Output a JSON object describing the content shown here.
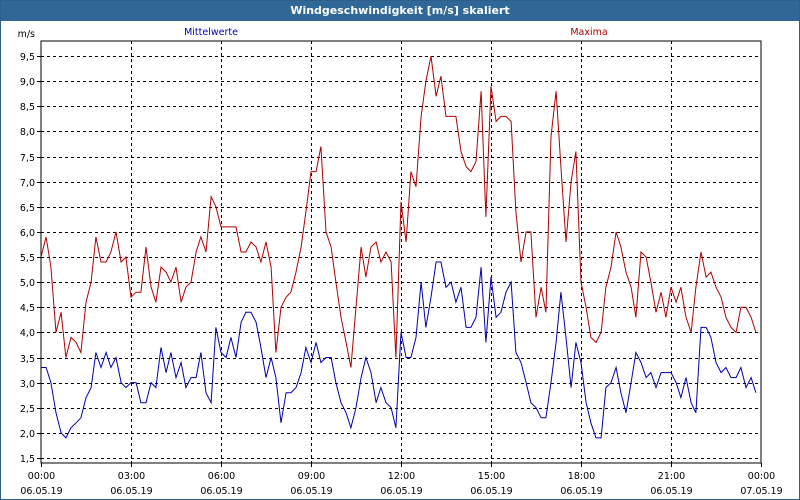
{
  "window": {
    "title": "Windgeschwindigkeit [m/s] skaliert"
  },
  "chart_data": {
    "type": "line",
    "title": "Windgeschwindigkeit [m/s] skaliert",
    "ylabel": "m/s",
    "xlabel": "",
    "ylim": [
      1.4,
      9.8
    ],
    "xlim": [
      0,
      24
    ],
    "grid": true,
    "x_ticks": [
      {
        "x": 0,
        "time": "00:00",
        "date": "06.05.19"
      },
      {
        "x": 3,
        "time": "03:00",
        "date": "06.05.19"
      },
      {
        "x": 6,
        "time": "06:00",
        "date": "06.05.19"
      },
      {
        "x": 9,
        "time": "09:00",
        "date": "06.05.19"
      },
      {
        "x": 12,
        "time": "12:00",
        "date": "06.05.19"
      },
      {
        "x": 15,
        "time": "15:00",
        "date": "06.05.19"
      },
      {
        "x": 18,
        "time": "18:00",
        "date": "06.05.19"
      },
      {
        "x": 21,
        "time": "21:00",
        "date": "06.05.19"
      },
      {
        "x": 24,
        "time": "00:00",
        "date": "07.05.19"
      }
    ],
    "y_ticks": [
      "1,5",
      "2,0",
      "2,5",
      "3,0",
      "3,5",
      "4,0",
      "4,5",
      "5,0",
      "5,5",
      "6,0",
      "6,5",
      "7,0",
      "7,5",
      "8,0",
      "8,5",
      "9,0",
      "9,5"
    ],
    "series": [
      {
        "name": "Mittelwerte",
        "color": "#0000b0",
        "legend": "top-left",
        "points": [
          [
            0,
            3.3
          ],
          [
            0.17,
            3.3
          ],
          [
            0.33,
            3.0
          ],
          [
            0.5,
            2.4
          ],
          [
            0.67,
            2.0
          ],
          [
            0.83,
            1.9
          ],
          [
            1,
            2.1
          ],
          [
            1.17,
            2.2
          ],
          [
            1.33,
            2.3
          ],
          [
            1.5,
            2.7
          ],
          [
            1.67,
            2.9
          ],
          [
            1.83,
            3.6
          ],
          [
            2,
            3.3
          ],
          [
            2.17,
            3.6
          ],
          [
            2.33,
            3.3
          ],
          [
            2.5,
            3.5
          ],
          [
            2.67,
            3.0
          ],
          [
            2.83,
            2.9
          ],
          [
            3,
            3.0
          ],
          [
            3.17,
            3.0
          ],
          [
            3.33,
            2.6
          ],
          [
            3.5,
            2.6
          ],
          [
            3.67,
            3.0
          ],
          [
            3.83,
            2.9
          ],
          [
            4,
            3.7
          ],
          [
            4.17,
            3.2
          ],
          [
            4.33,
            3.6
          ],
          [
            4.5,
            3.1
          ],
          [
            4.67,
            3.4
          ],
          [
            4.83,
            2.9
          ],
          [
            5,
            3.1
          ],
          [
            5.17,
            3.1
          ],
          [
            5.33,
            3.6
          ],
          [
            5.5,
            2.8
          ],
          [
            5.67,
            2.6
          ],
          [
            5.83,
            4.1
          ],
          [
            6,
            3.6
          ],
          [
            6.17,
            3.5
          ],
          [
            6.33,
            3.9
          ],
          [
            6.5,
            3.5
          ],
          [
            6.67,
            4.2
          ],
          [
            6.83,
            4.4
          ],
          [
            7,
            4.4
          ],
          [
            7.17,
            4.2
          ],
          [
            7.33,
            3.7
          ],
          [
            7.5,
            3.1
          ],
          [
            7.67,
            3.5
          ],
          [
            7.83,
            3.1
          ],
          [
            8,
            2.2
          ],
          [
            8.17,
            2.8
          ],
          [
            8.33,
            2.8
          ],
          [
            8.5,
            2.9
          ],
          [
            8.67,
            3.2
          ],
          [
            8.83,
            3.7
          ],
          [
            9,
            3.4
          ],
          [
            9.17,
            3.8
          ],
          [
            9.33,
            3.4
          ],
          [
            9.5,
            3.5
          ],
          [
            9.67,
            3.5
          ],
          [
            9.83,
            3.0
          ],
          [
            10,
            2.6
          ],
          [
            10.17,
            2.4
          ],
          [
            10.33,
            2.1
          ],
          [
            10.5,
            2.5
          ],
          [
            10.67,
            3.1
          ],
          [
            10.83,
            3.5
          ],
          [
            11,
            3.2
          ],
          [
            11.17,
            2.6
          ],
          [
            11.33,
            2.9
          ],
          [
            11.5,
            2.6
          ],
          [
            11.67,
            2.5
          ],
          [
            11.83,
            2.1
          ],
          [
            12,
            4.0
          ],
          [
            12.17,
            3.5
          ],
          [
            12.33,
            3.5
          ],
          [
            12.5,
            3.9
          ],
          [
            12.67,
            5.0
          ],
          [
            12.83,
            4.1
          ],
          [
            13,
            4.7
          ],
          [
            13.17,
            5.4
          ],
          [
            13.33,
            5.4
          ],
          [
            13.5,
            4.9
          ],
          [
            13.67,
            5.0
          ],
          [
            13.83,
            4.6
          ],
          [
            14,
            4.9
          ],
          [
            14.17,
            4.1
          ],
          [
            14.33,
            4.1
          ],
          [
            14.5,
            4.3
          ],
          [
            14.67,
            5.3
          ],
          [
            14.83,
            3.8
          ],
          [
            15,
            5.1
          ],
          [
            15.17,
            4.3
          ],
          [
            15.33,
            4.4
          ],
          [
            15.5,
            4.8
          ],
          [
            15.67,
            5.0
          ],
          [
            15.83,
            3.6
          ],
          [
            16,
            3.4
          ],
          [
            16.17,
            3.0
          ],
          [
            16.33,
            2.6
          ],
          [
            16.5,
            2.5
          ],
          [
            16.67,
            2.3
          ],
          [
            16.83,
            2.3
          ],
          [
            17,
            3.0
          ],
          [
            17.17,
            3.8
          ],
          [
            17.33,
            4.8
          ],
          [
            17.5,
            3.9
          ],
          [
            17.67,
            2.9
          ],
          [
            17.83,
            3.8
          ],
          [
            18,
            3.4
          ],
          [
            18.17,
            2.6
          ],
          [
            18.33,
            2.2
          ],
          [
            18.5,
            1.9
          ],
          [
            18.67,
            1.9
          ],
          [
            18.83,
            2.9
          ],
          [
            19,
            3.0
          ],
          [
            19.17,
            3.3
          ],
          [
            19.33,
            2.8
          ],
          [
            19.5,
            2.4
          ],
          [
            19.67,
            3.0
          ],
          [
            19.83,
            3.6
          ],
          [
            20,
            3.4
          ],
          [
            20.17,
            3.1
          ],
          [
            20.33,
            3.2
          ],
          [
            20.5,
            2.9
          ],
          [
            20.67,
            3.2
          ],
          [
            20.83,
            3.2
          ],
          [
            21,
            3.2
          ],
          [
            21.17,
            3.0
          ],
          [
            21.33,
            2.7
          ],
          [
            21.5,
            3.1
          ],
          [
            21.67,
            2.6
          ],
          [
            21.83,
            2.4
          ],
          [
            22,
            4.1
          ],
          [
            22.17,
            4.1
          ],
          [
            22.33,
            3.9
          ],
          [
            22.5,
            3.4
          ],
          [
            22.67,
            3.2
          ],
          [
            22.83,
            3.3
          ],
          [
            23,
            3.1
          ],
          [
            23.17,
            3.1
          ],
          [
            23.33,
            3.3
          ],
          [
            23.5,
            2.9
          ],
          [
            23.67,
            3.1
          ],
          [
            23.83,
            2.8
          ]
        ]
      },
      {
        "name": "Maxima",
        "color": "#b00000",
        "legend": "top-right",
        "points": [
          [
            0,
            5.5
          ],
          [
            0.17,
            5.9
          ],
          [
            0.33,
            5.3
          ],
          [
            0.5,
            4.0
          ],
          [
            0.67,
            4.4
          ],
          [
            0.83,
            3.5
          ],
          [
            1,
            3.9
          ],
          [
            1.17,
            3.8
          ],
          [
            1.33,
            3.6
          ],
          [
            1.5,
            4.6
          ],
          [
            1.67,
            5.0
          ],
          [
            1.83,
            5.9
          ],
          [
            2,
            5.4
          ],
          [
            2.17,
            5.4
          ],
          [
            2.33,
            5.6
          ],
          [
            2.5,
            6.0
          ],
          [
            2.67,
            5.4
          ],
          [
            2.83,
            5.5
          ],
          [
            3,
            4.7
          ],
          [
            3.17,
            4.8
          ],
          [
            3.33,
            4.8
          ],
          [
            3.5,
            5.7
          ],
          [
            3.67,
            4.9
          ],
          [
            3.83,
            4.6
          ],
          [
            4,
            5.3
          ],
          [
            4.17,
            5.2
          ],
          [
            4.33,
            5.0
          ],
          [
            4.5,
            5.3
          ],
          [
            4.67,
            4.6
          ],
          [
            4.83,
            4.9
          ],
          [
            5,
            5.0
          ],
          [
            5.17,
            5.6
          ],
          [
            5.33,
            5.9
          ],
          [
            5.5,
            5.6
          ],
          [
            5.67,
            6.7
          ],
          [
            5.83,
            6.5
          ],
          [
            6,
            6.1
          ],
          [
            6.17,
            6.1
          ],
          [
            6.33,
            6.1
          ],
          [
            6.5,
            6.1
          ],
          [
            6.67,
            5.6
          ],
          [
            6.83,
            5.6
          ],
          [
            7,
            5.8
          ],
          [
            7.17,
            5.7
          ],
          [
            7.33,
            5.4
          ],
          [
            7.5,
            5.8
          ],
          [
            7.67,
            5.3
          ],
          [
            7.83,
            3.6
          ],
          [
            8,
            4.5
          ],
          [
            8.17,
            4.7
          ],
          [
            8.33,
            4.8
          ],
          [
            8.5,
            5.2
          ],
          [
            8.67,
            5.7
          ],
          [
            8.83,
            6.4
          ],
          [
            9,
            7.2
          ],
          [
            9.17,
            7.2
          ],
          [
            9.33,
            7.7
          ],
          [
            9.5,
            6.0
          ],
          [
            9.67,
            5.7
          ],
          [
            9.83,
            5.0
          ],
          [
            10,
            4.3
          ],
          [
            10.17,
            3.8
          ],
          [
            10.33,
            3.3
          ],
          [
            10.5,
            4.5
          ],
          [
            10.67,
            5.7
          ],
          [
            10.83,
            5.1
          ],
          [
            11,
            5.7
          ],
          [
            11.17,
            5.8
          ],
          [
            11.33,
            5.4
          ],
          [
            11.5,
            5.6
          ],
          [
            11.67,
            5.4
          ],
          [
            11.83,
            3.5
          ],
          [
            12,
            6.6
          ],
          [
            12.17,
            5.8
          ],
          [
            12.33,
            7.2
          ],
          [
            12.5,
            6.9
          ],
          [
            12.67,
            8.3
          ],
          [
            12.83,
            9.0
          ],
          [
            13,
            9.5
          ],
          [
            13.17,
            8.7
          ],
          [
            13.33,
            9.1
          ],
          [
            13.5,
            8.3
          ],
          [
            13.67,
            8.3
          ],
          [
            13.83,
            8.3
          ],
          [
            14,
            7.6
          ],
          [
            14.17,
            7.3
          ],
          [
            14.33,
            7.2
          ],
          [
            14.5,
            7.4
          ],
          [
            14.67,
            8.8
          ],
          [
            14.83,
            6.3
          ],
          [
            15,
            8.9
          ],
          [
            15.17,
            8.2
          ],
          [
            15.33,
            8.3
          ],
          [
            15.5,
            8.3
          ],
          [
            15.67,
            8.2
          ],
          [
            15.83,
            6.4
          ],
          [
            16,
            5.4
          ],
          [
            16.17,
            6.0
          ],
          [
            16.33,
            6.0
          ],
          [
            16.5,
            4.3
          ],
          [
            16.67,
            4.9
          ],
          [
            16.83,
            4.4
          ],
          [
            17,
            7.9
          ],
          [
            17.17,
            8.8
          ],
          [
            17.33,
            7.3
          ],
          [
            17.5,
            5.8
          ],
          [
            17.67,
            7.0
          ],
          [
            17.83,
            7.6
          ],
          [
            18,
            5.0
          ],
          [
            18.17,
            4.5
          ],
          [
            18.33,
            3.9
          ],
          [
            18.5,
            3.8
          ],
          [
            18.67,
            4.0
          ],
          [
            18.83,
            4.9
          ],
          [
            19,
            5.3
          ],
          [
            19.17,
            6.0
          ],
          [
            19.33,
            5.7
          ],
          [
            19.5,
            5.2
          ],
          [
            19.67,
            4.9
          ],
          [
            19.83,
            4.3
          ],
          [
            20,
            5.6
          ],
          [
            20.17,
            5.5
          ],
          [
            20.33,
            5.0
          ],
          [
            20.5,
            4.4
          ],
          [
            20.67,
            4.8
          ],
          [
            20.83,
            4.3
          ],
          [
            21,
            4.9
          ],
          [
            21.17,
            4.6
          ],
          [
            21.33,
            4.9
          ],
          [
            21.5,
            4.3
          ],
          [
            21.67,
            4.0
          ],
          [
            21.83,
            4.9
          ],
          [
            22,
            5.6
          ],
          [
            22.17,
            5.1
          ],
          [
            22.33,
            5.2
          ],
          [
            22.5,
            4.9
          ],
          [
            22.67,
            4.7
          ],
          [
            22.83,
            4.3
          ],
          [
            23,
            4.1
          ],
          [
            23.17,
            4.0
          ],
          [
            23.33,
            4.5
          ],
          [
            23.5,
            4.5
          ],
          [
            23.67,
            4.3
          ],
          [
            23.83,
            4.0
          ]
        ]
      }
    ]
  }
}
